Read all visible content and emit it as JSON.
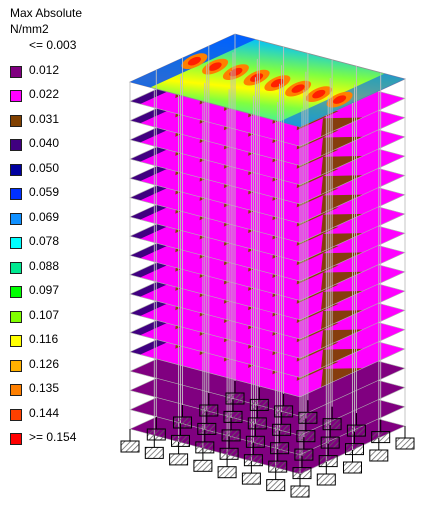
{
  "legend": {
    "title_line1": "Max Absolute",
    "title_line2": "N/mm2",
    "entries": [
      {
        "label": "<= 0.003",
        "color": "#800080",
        "swatch": false
      },
      {
        "label": "0.012",
        "color": "#800080",
        "swatch": true
      },
      {
        "label": "0.022",
        "color": "#ff00ff",
        "swatch": true
      },
      {
        "label": "0.031",
        "color": "#804000",
        "swatch": true
      },
      {
        "label": "0.040",
        "color": "#400080",
        "swatch": true
      },
      {
        "label": "0.050",
        "color": "#0000a0",
        "swatch": true
      },
      {
        "label": "0.059",
        "color": "#0030ff",
        "swatch": true
      },
      {
        "label": "0.069",
        "color": "#1090ff",
        "swatch": true
      },
      {
        "label": "0.078",
        "color": "#00ffff",
        "swatch": true
      },
      {
        "label": "0.088",
        "color": "#00e890",
        "swatch": true
      },
      {
        "label": "0.097",
        "color": "#00ff00",
        "swatch": true
      },
      {
        "label": "0.107",
        "color": "#80ff00",
        "swatch": true
      },
      {
        "label": "0.116",
        "color": "#ffff00",
        "swatch": true
      },
      {
        "label": "0.126",
        "color": "#ffb000",
        "swatch": true
      },
      {
        "label": "0.135",
        "color": "#ff8000",
        "swatch": true
      },
      {
        "label": "0.144",
        "color": "#ff4000",
        "swatch": true
      },
      {
        "label": ">= 0.154",
        "color": "#ff0000",
        "swatch": true
      }
    ]
  },
  "model": {
    "view": "3d-structure-contour",
    "story_count": 18,
    "column_lines_front": 8,
    "column_lines_side": 5,
    "colors": {
      "slab_main": "#ff00ff",
      "slab_edge": "#804000",
      "slab_side": "#400080",
      "slab_low": "#800080",
      "roof_base": "#00ffff",
      "grid": "#c0c0c0",
      "support_hatch": "#606060"
    }
  }
}
